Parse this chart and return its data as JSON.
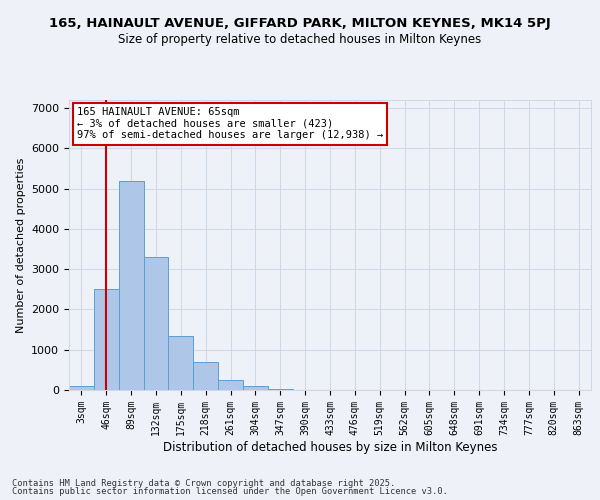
{
  "title1": "165, HAINAULT AVENUE, GIFFARD PARK, MILTON KEYNES, MK14 5PJ",
  "title2": "Size of property relative to detached houses in Milton Keynes",
  "xlabel": "Distribution of detached houses by size in Milton Keynes",
  "ylabel": "Number of detached properties",
  "bin_labels": [
    "3sqm",
    "46sqm",
    "89sqm",
    "132sqm",
    "175sqm",
    "218sqm",
    "261sqm",
    "304sqm",
    "347sqm",
    "390sqm",
    "433sqm",
    "476sqm",
    "519sqm",
    "562sqm",
    "605sqm",
    "648sqm",
    "691sqm",
    "734sqm",
    "777sqm",
    "820sqm",
    "863sqm"
  ],
  "bar_heights": [
    100,
    2500,
    5200,
    3300,
    1350,
    700,
    250,
    100,
    30,
    10,
    5,
    2,
    1,
    0,
    0,
    0,
    0,
    0,
    0,
    0,
    0
  ],
  "bar_color": "#aec6e8",
  "bar_edge_color": "#5a9fd4",
  "grid_color": "#d0d8e8",
  "background_color": "#eef2f8",
  "vline_x": 1.0,
  "vline_color": "#cc0000",
  "annotation_text": "165 HAINAULT AVENUE: 65sqm\n← 3% of detached houses are smaller (423)\n97% of semi-detached houses are larger (12,938) →",
  "annotation_box_color": "#cc0000",
  "ylim": [
    0,
    7200
  ],
  "yticks": [
    0,
    1000,
    2000,
    3000,
    4000,
    5000,
    6000,
    7000
  ],
  "footer_line1": "Contains HM Land Registry data © Crown copyright and database right 2025.",
  "footer_line2": "Contains public sector information licensed under the Open Government Licence v3.0."
}
